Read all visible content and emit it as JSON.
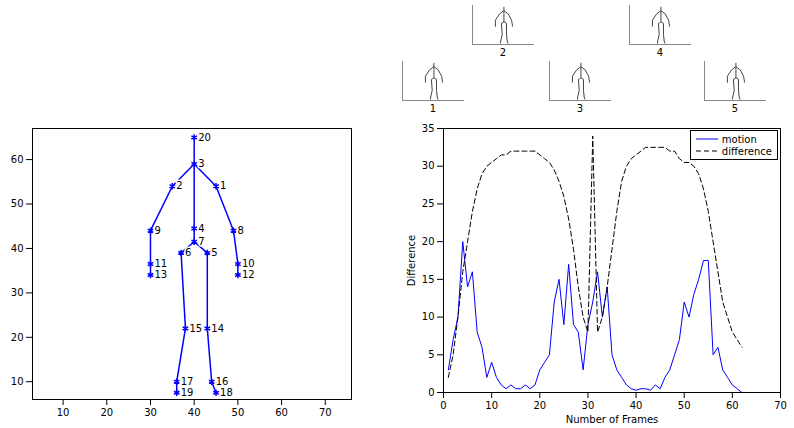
{
  "thumbnails": {
    "labels": [
      "1",
      "2",
      "3",
      "4",
      "5"
    ]
  },
  "chart_data": [
    {
      "type": "scatter",
      "marker": "asterisk",
      "color": "#0000ff",
      "xlim": [
        3,
        76
      ],
      "ylim": [
        6,
        67
      ],
      "xticks": [
        10,
        20,
        30,
        40,
        50,
        60,
        70
      ],
      "yticks": [
        10,
        20,
        30,
        40,
        50,
        60
      ],
      "points": [
        {
          "label": "20",
          "x": 40,
          "y": 65
        },
        {
          "label": "3",
          "x": 40,
          "y": 59
        },
        {
          "label": "2",
          "x": 35,
          "y": 54
        },
        {
          "label": "1",
          "x": 45,
          "y": 54
        },
        {
          "label": "9",
          "x": 30,
          "y": 44
        },
        {
          "label": "4",
          "x": 40,
          "y": 44.5
        },
        {
          "label": "8",
          "x": 49,
          "y": 44
        },
        {
          "label": "7",
          "x": 40,
          "y": 41.5
        },
        {
          "label": "6",
          "x": 37,
          "y": 39
        },
        {
          "label": "5",
          "x": 43,
          "y": 39
        },
        {
          "label": "11",
          "x": 30,
          "y": 36.5
        },
        {
          "label": "10",
          "x": 50,
          "y": 36.5
        },
        {
          "label": "13",
          "x": 30,
          "y": 34
        },
        {
          "label": "12",
          "x": 50,
          "y": 34
        },
        {
          "label": "15",
          "x": 38,
          "y": 22
        },
        {
          "label": "14",
          "x": 43,
          "y": 22
        },
        {
          "label": "17",
          "x": 36,
          "y": 10
        },
        {
          "label": "16",
          "x": 44,
          "y": 10
        },
        {
          "label": "19",
          "x": 36,
          "y": 7.5
        },
        {
          "label": "18",
          "x": 45,
          "y": 7.5
        }
      ],
      "edges": [
        [
          "20",
          "3"
        ],
        [
          "3",
          "2"
        ],
        [
          "3",
          "1"
        ],
        [
          "2",
          "9"
        ],
        [
          "9",
          "11"
        ],
        [
          "11",
          "13"
        ],
        [
          "1",
          "8"
        ],
        [
          "8",
          "10"
        ],
        [
          "10",
          "12"
        ],
        [
          "3",
          "4"
        ],
        [
          "4",
          "7"
        ],
        [
          "7",
          "6"
        ],
        [
          "7",
          "5"
        ],
        [
          "6",
          "15"
        ],
        [
          "15",
          "17"
        ],
        [
          "17",
          "19"
        ],
        [
          "5",
          "14"
        ],
        [
          "14",
          "16"
        ],
        [
          "16",
          "18"
        ]
      ]
    },
    {
      "type": "line",
      "xlabel": "Number of Frames",
      "ylabel": "Difference",
      "xlim": [
        0,
        70
      ],
      "ylim": [
        0,
        35
      ],
      "xticks": [
        0,
        10,
        20,
        30,
        40,
        50,
        60,
        70
      ],
      "yticks": [
        0,
        5,
        10,
        15,
        20,
        25,
        30,
        35
      ],
      "legend": "top-right",
      "x": [
        1,
        2,
        3,
        4,
        5,
        6,
        7,
        8,
        9,
        10,
        11,
        12,
        13,
        14,
        15,
        16,
        17,
        18,
        19,
        20,
        21,
        22,
        23,
        24,
        25,
        26,
        27,
        28,
        29,
        30,
        31,
        32,
        33,
        34,
        35,
        36,
        37,
        38,
        39,
        40,
        41,
        42,
        43,
        44,
        45,
        46,
        47,
        48,
        49,
        50,
        51,
        52,
        53,
        54,
        55,
        56,
        57,
        58,
        59,
        60,
        61,
        62
      ],
      "series": [
        {
          "name": "motion",
          "color": "#0000ff",
          "line_style": "solid",
          "values": [
            3,
            7,
            10,
            20,
            14,
            16,
            8,
            6,
            2,
            4,
            2,
            1,
            0.5,
            1,
            0.5,
            0.5,
            1,
            0.5,
            1,
            3,
            4,
            5,
            12,
            15,
            9,
            17,
            9,
            8,
            3,
            9,
            12,
            16,
            10,
            14,
            5,
            3,
            2,
            1,
            0.5,
            0.3,
            0.5,
            0.5,
            0.3,
            1,
            0.5,
            2,
            3,
            5,
            7,
            12,
            10,
            13,
            15,
            17.5,
            17.5,
            5,
            6,
            3,
            2,
            1,
            0.5,
            0
          ]
        },
        {
          "name": "difference",
          "color": "#000000",
          "line_style": "dashed",
          "values": [
            2,
            5,
            10,
            16,
            20,
            24,
            27,
            29,
            30,
            30.5,
            31,
            31.5,
            31.5,
            32,
            32,
            32,
            32,
            32,
            32,
            31.5,
            31,
            30.5,
            29.5,
            28,
            26,
            23,
            19,
            14,
            10,
            8,
            34,
            8,
            10,
            14,
            19,
            24,
            28,
            30,
            31,
            31.5,
            32,
            32.5,
            32.5,
            32.5,
            32.5,
            32.5,
            32,
            32,
            31,
            30.5,
            30.5,
            30,
            29,
            27,
            24,
            20,
            16,
            12,
            10,
            8,
            7,
            6
          ]
        }
      ]
    }
  ]
}
